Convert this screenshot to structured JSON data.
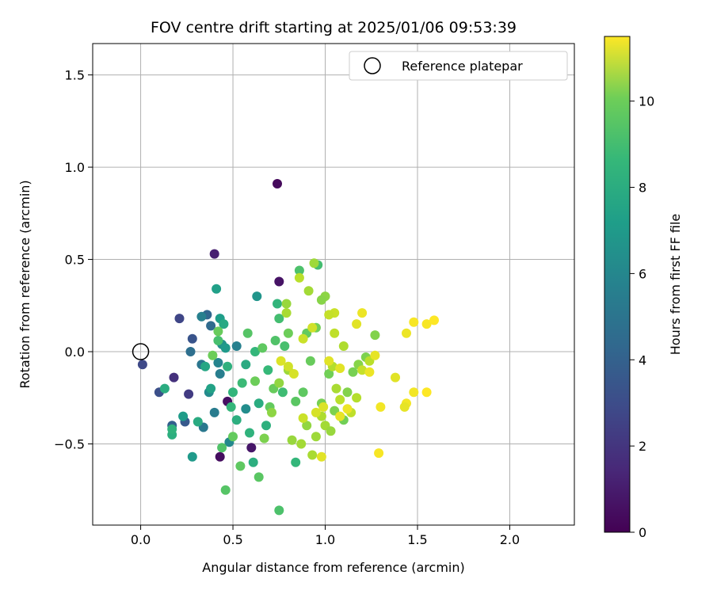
{
  "chart_data": {
    "type": "scatter",
    "title": "FOV centre drift starting at 2025/01/06 09:53:39",
    "xlabel": "Angular distance from reference (arcmin)",
    "ylabel": "Rotation from reference (arcmin)",
    "xlim": [
      -0.26,
      2.35
    ],
    "ylim": [
      -0.94,
      1.67
    ],
    "x_ticks": [
      0.0,
      0.5,
      1.0,
      1.5,
      2.0
    ],
    "x_tick_labels": [
      "0.0",
      "0.5",
      "1.0",
      "1.5",
      "2.0"
    ],
    "y_ticks": [
      -0.5,
      0.0,
      0.5,
      1.0,
      1.5
    ],
    "y_tick_labels": [
      "−0.5",
      "0.0",
      "0.5",
      "1.0",
      "1.5"
    ],
    "grid": true,
    "legend": {
      "position": "upper-right",
      "entries": [
        {
          "label": "Reference platepar",
          "marker": "open-circle"
        }
      ]
    },
    "reference_point": {
      "x": 0.0,
      "y": 0.0
    },
    "colorbar": {
      "label": "Hours from first FF file",
      "range": [
        0,
        11.5
      ],
      "ticks": [
        0,
        2,
        4,
        6,
        8,
        10
      ],
      "tick_labels": [
        "0",
        "2",
        "4",
        "6",
        "8",
        "10"
      ],
      "colormap": "viridis"
    },
    "points": [
      {
        "x": 0.74,
        "y": 0.91,
        "c": 0.3
      },
      {
        "x": 0.75,
        "y": 0.38,
        "c": 0.6
      },
      {
        "x": 0.4,
        "y": 0.53,
        "c": 1.0
      },
      {
        "x": 0.43,
        "y": -0.57,
        "c": 0.4
      },
      {
        "x": 0.6,
        "y": -0.52,
        "c": 0.7
      },
      {
        "x": 0.47,
        "y": -0.27,
        "c": 0.5
      },
      {
        "x": 0.01,
        "y": -0.07,
        "c": 2.5
      },
      {
        "x": 0.1,
        "y": -0.22,
        "c": 2.8
      },
      {
        "x": 0.18,
        "y": -0.14,
        "c": 1.6
      },
      {
        "x": 0.21,
        "y": 0.18,
        "c": 2.4
      },
      {
        "x": 0.26,
        "y": -0.23,
        "c": 2.0
      },
      {
        "x": 0.28,
        "y": 0.07,
        "c": 3.0
      },
      {
        "x": 0.17,
        "y": -0.4,
        "c": 3.5
      },
      {
        "x": 0.24,
        "y": -0.38,
        "c": 3.2
      },
      {
        "x": 0.27,
        "y": 0.0,
        "c": 4.2
      },
      {
        "x": 0.33,
        "y": -0.07,
        "c": 4.5
      },
      {
        "x": 0.36,
        "y": 0.2,
        "c": 3.8
      },
      {
        "x": 0.38,
        "y": 0.14,
        "c": 4.0
      },
      {
        "x": 0.33,
        "y": 0.19,
        "c": 5.0
      },
      {
        "x": 0.34,
        "y": -0.41,
        "c": 4.6
      },
      {
        "x": 0.37,
        "y": -0.22,
        "c": 5.5
      },
      {
        "x": 0.4,
        "y": -0.33,
        "c": 4.8
      },
      {
        "x": 0.42,
        "y": -0.06,
        "c": 5.2
      },
      {
        "x": 0.43,
        "y": -0.12,
        "c": 4.9
      },
      {
        "x": 0.44,
        "y": 0.04,
        "c": 5.8
      },
      {
        "x": 0.46,
        "y": 0.02,
        "c": 6.2
      },
      {
        "x": 0.48,
        "y": -0.49,
        "c": 5.4
      },
      {
        "x": 0.52,
        "y": 0.03,
        "c": 5.0
      },
      {
        "x": 0.57,
        "y": -0.31,
        "c": 5.6
      },
      {
        "x": 0.63,
        "y": 0.3,
        "c": 6.0
      },
      {
        "x": 0.41,
        "y": 0.34,
        "c": 6.5
      },
      {
        "x": 0.35,
        "y": -0.08,
        "c": 6.8
      },
      {
        "x": 0.38,
        "y": -0.2,
        "c": 6.6
      },
      {
        "x": 0.43,
        "y": 0.18,
        "c": 6.4
      },
      {
        "x": 0.28,
        "y": -0.57,
        "c": 6.2
      },
      {
        "x": 0.31,
        "y": -0.38,
        "c": 7.0
      },
      {
        "x": 0.17,
        "y": -0.45,
        "c": 7.2
      },
      {
        "x": 0.17,
        "y": -0.42,
        "c": 7.4
      },
      {
        "x": 0.13,
        "y": -0.2,
        "c": 7.1
      },
      {
        "x": 0.23,
        "y": -0.35,
        "c": 6.3
      },
      {
        "x": 0.45,
        "y": 0.15,
        "c": 6.9
      },
      {
        "x": 0.47,
        "y": -0.08,
        "c": 7.3
      },
      {
        "x": 0.49,
        "y": -0.3,
        "c": 7.6
      },
      {
        "x": 0.5,
        "y": -0.22,
        "c": 7.5
      },
      {
        "x": 0.52,
        "y": -0.37,
        "c": 7.2
      },
      {
        "x": 0.55,
        "y": -0.17,
        "c": 7.8
      },
      {
        "x": 0.57,
        "y": -0.07,
        "c": 7.0
      },
      {
        "x": 0.59,
        "y": -0.44,
        "c": 7.4
      },
      {
        "x": 0.61,
        "y": -0.6,
        "c": 7.2
      },
      {
        "x": 0.62,
        "y": 0.0,
        "c": 7.6
      },
      {
        "x": 0.64,
        "y": -0.28,
        "c": 7.1
      },
      {
        "x": 0.68,
        "y": -0.4,
        "c": 7.3
      },
      {
        "x": 0.69,
        "y": -0.1,
        "c": 7.7
      },
      {
        "x": 0.74,
        "y": 0.26,
        "c": 7.5
      },
      {
        "x": 0.75,
        "y": 0.18,
        "c": 8.0
      },
      {
        "x": 0.77,
        "y": -0.22,
        "c": 7.9
      },
      {
        "x": 0.78,
        "y": 0.03,
        "c": 8.1
      },
      {
        "x": 0.84,
        "y": -0.6,
        "c": 7.6
      },
      {
        "x": 0.86,
        "y": 0.44,
        "c": 8.2
      },
      {
        "x": 0.73,
        "y": 0.06,
        "c": 8.3
      },
      {
        "x": 0.96,
        "y": 0.47,
        "c": 8.0
      },
      {
        "x": 0.75,
        "y": -0.86,
        "c": 8.2
      },
      {
        "x": 0.46,
        "y": -0.75,
        "c": 8.4
      },
      {
        "x": 0.54,
        "y": -0.62,
        "c": 8.6
      },
      {
        "x": 0.64,
        "y": -0.68,
        "c": 8.5
      },
      {
        "x": 0.44,
        "y": -0.52,
        "c": 8.3
      },
      {
        "x": 0.5,
        "y": -0.46,
        "c": 8.7
      },
      {
        "x": 0.42,
        "y": 0.06,
        "c": 8.1
      },
      {
        "x": 0.42,
        "y": 0.11,
        "c": 8.8
      },
      {
        "x": 0.39,
        "y": -0.02,
        "c": 8.9
      },
      {
        "x": 0.58,
        "y": 0.1,
        "c": 8.4
      },
      {
        "x": 0.62,
        "y": -0.16,
        "c": 8.9
      },
      {
        "x": 0.66,
        "y": 0.02,
        "c": 8.6
      },
      {
        "x": 0.7,
        "y": -0.3,
        "c": 8.7
      },
      {
        "x": 0.72,
        "y": -0.2,
        "c": 8.8
      },
      {
        "x": 0.8,
        "y": 0.1,
        "c": 8.9
      },
      {
        "x": 0.84,
        "y": -0.27,
        "c": 8.5
      },
      {
        "x": 0.88,
        "y": -0.22,
        "c": 8.6
      },
      {
        "x": 0.9,
        "y": 0.1,
        "c": 8.7
      },
      {
        "x": 0.92,
        "y": -0.05,
        "c": 8.8
      },
      {
        "x": 0.95,
        "y": 0.13,
        "c": 9.0
      },
      {
        "x": 0.98,
        "y": -0.28,
        "c": 9.1
      },
      {
        "x": 1.02,
        "y": -0.12,
        "c": 9.0
      },
      {
        "x": 1.05,
        "y": -0.32,
        "c": 9.2
      },
      {
        "x": 1.1,
        "y": -0.37,
        "c": 9.0
      },
      {
        "x": 1.12,
        "y": -0.22,
        "c": 9.3
      },
      {
        "x": 1.15,
        "y": -0.11,
        "c": 9.1
      },
      {
        "x": 1.18,
        "y": -0.07,
        "c": 9.4
      },
      {
        "x": 1.22,
        "y": -0.03,
        "c": 9.2
      },
      {
        "x": 1.27,
        "y": 0.09,
        "c": 9.3
      },
      {
        "x": 1.0,
        "y": 0.3,
        "c": 9.5
      },
      {
        "x": 0.98,
        "y": 0.28,
        "c": 9.4
      },
      {
        "x": 0.94,
        "y": 0.48,
        "c": 9.8
      },
      {
        "x": 0.91,
        "y": 0.33,
        "c": 9.9
      },
      {
        "x": 0.86,
        "y": 0.4,
        "c": 10.3
      },
      {
        "x": 0.79,
        "y": 0.21,
        "c": 10.0
      },
      {
        "x": 0.79,
        "y": 0.26,
        "c": 9.7
      },
      {
        "x": 0.67,
        "y": -0.47,
        "c": 9.2
      },
      {
        "x": 0.71,
        "y": -0.33,
        "c": 9.5
      },
      {
        "x": 0.75,
        "y": -0.17,
        "c": 9.6
      },
      {
        "x": 0.8,
        "y": -0.1,
        "c": 9.8
      },
      {
        "x": 0.82,
        "y": -0.48,
        "c": 9.7
      },
      {
        "x": 0.87,
        "y": -0.5,
        "c": 9.9
      },
      {
        "x": 0.9,
        "y": -0.4,
        "c": 9.6
      },
      {
        "x": 0.93,
        "y": -0.56,
        "c": 10.0
      },
      {
        "x": 0.95,
        "y": -0.46,
        "c": 9.8
      },
      {
        "x": 0.98,
        "y": -0.35,
        "c": 10.1
      },
      {
        "x": 1.0,
        "y": -0.4,
        "c": 9.9
      },
      {
        "x": 1.03,
        "y": -0.43,
        "c": 9.7
      },
      {
        "x": 1.04,
        "y": -0.08,
        "c": 10.2
      },
      {
        "x": 1.06,
        "y": -0.2,
        "c": 10.0
      },
      {
        "x": 1.08,
        "y": -0.26,
        "c": 10.3
      },
      {
        "x": 1.1,
        "y": 0.03,
        "c": 10.1
      },
      {
        "x": 1.14,
        "y": -0.33,
        "c": 10.4
      },
      {
        "x": 1.17,
        "y": -0.25,
        "c": 10.2
      },
      {
        "x": 1.2,
        "y": -0.1,
        "c": 10.5
      },
      {
        "x": 1.24,
        "y": -0.05,
        "c": 10.3
      },
      {
        "x": 1.05,
        "y": 0.1,
        "c": 10.4
      },
      {
        "x": 1.05,
        "y": 0.21,
        "c": 10.6
      },
      {
        "x": 1.02,
        "y": 0.2,
        "c": 10.5
      },
      {
        "x": 0.93,
        "y": 0.13,
        "c": 10.7
      },
      {
        "x": 0.88,
        "y": 0.07,
        "c": 10.6
      },
      {
        "x": 0.83,
        "y": -0.12,
        "c": 10.8
      },
      {
        "x": 0.8,
        "y": -0.08,
        "c": 10.7
      },
      {
        "x": 0.76,
        "y": -0.05,
        "c": 10.9
      },
      {
        "x": 0.88,
        "y": -0.36,
        "c": 10.6
      },
      {
        "x": 0.95,
        "y": -0.33,
        "c": 10.8
      },
      {
        "x": 0.98,
        "y": -0.57,
        "c": 11.0
      },
      {
        "x": 1.02,
        "y": -0.05,
        "c": 11.0
      },
      {
        "x": 1.08,
        "y": -0.35,
        "c": 11.1
      },
      {
        "x": 1.12,
        "y": -0.31,
        "c": 11.2
      },
      {
        "x": 1.17,
        "y": 0.15,
        "c": 11.0
      },
      {
        "x": 1.2,
        "y": 0.21,
        "c": 11.2
      },
      {
        "x": 1.27,
        "y": -0.02,
        "c": 11.1
      },
      {
        "x": 1.3,
        "y": -0.3,
        "c": 11.3
      },
      {
        "x": 1.29,
        "y": -0.55,
        "c": 11.4
      },
      {
        "x": 1.38,
        "y": -0.14,
        "c": 11.0
      },
      {
        "x": 1.44,
        "y": 0.1,
        "c": 11.2
      },
      {
        "x": 1.44,
        "y": -0.28,
        "c": 11.3
      },
      {
        "x": 1.48,
        "y": 0.16,
        "c": 11.4
      },
      {
        "x": 1.48,
        "y": -0.22,
        "c": 11.3
      },
      {
        "x": 1.55,
        "y": 0.15,
        "c": 11.4
      },
      {
        "x": 1.55,
        "y": -0.22,
        "c": 11.5
      },
      {
        "x": 1.59,
        "y": 0.17,
        "c": 11.5
      },
      {
        "x": 1.43,
        "y": -0.3,
        "c": 11.1
      },
      {
        "x": 1.24,
        "y": -0.11,
        "c": 11.2
      },
      {
        "x": 1.08,
        "y": -0.09,
        "c": 11.0
      },
      {
        "x": 0.99,
        "y": -0.3,
        "c": 10.9
      }
    ]
  }
}
